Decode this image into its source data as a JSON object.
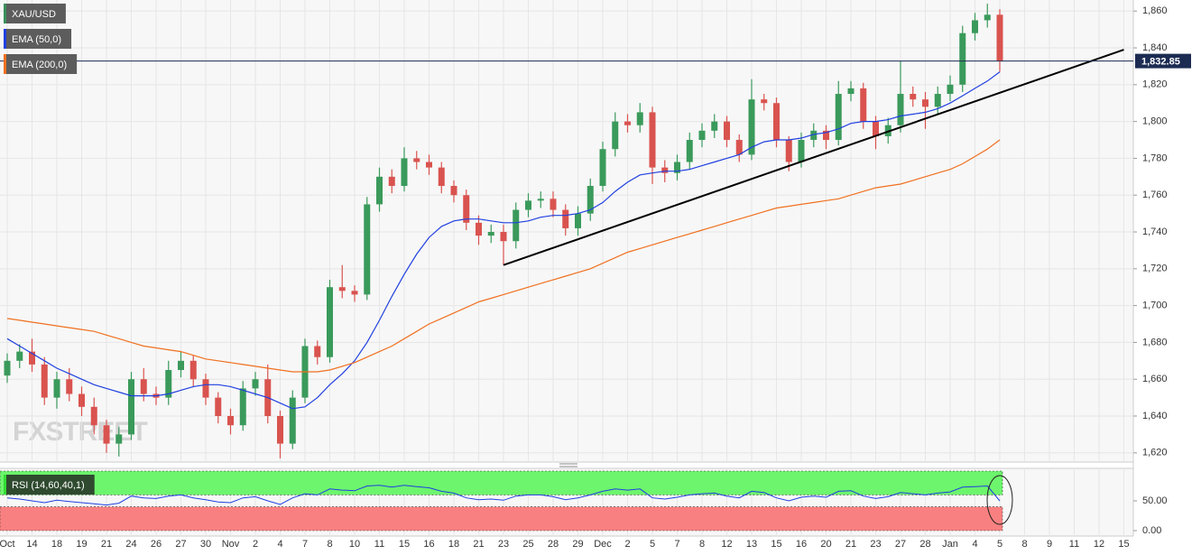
{
  "chart_data": {
    "type": "candlestick",
    "categories": [
      "Oct",
      null,
      "14",
      null,
      "18",
      null,
      "19",
      null,
      "21",
      null,
      "24",
      null,
      "26",
      null,
      "27",
      null,
      "30",
      null,
      "Nov",
      null,
      "2",
      null,
      "4",
      null,
      "7",
      null,
      "8",
      null,
      "10",
      null,
      "11",
      null,
      "15",
      null,
      "16",
      null,
      "18",
      null,
      "21",
      null,
      "23",
      null,
      "25",
      null,
      "28",
      null,
      "29",
      null,
      "Dec",
      null,
      "2",
      null,
      "5",
      null,
      "7",
      null,
      "8",
      null,
      "12",
      null,
      "13",
      null,
      "15",
      null,
      "16",
      null,
      "20",
      null,
      "21",
      null,
      "23",
      null,
      "27",
      null,
      "28",
      null,
      "Jan",
      null,
      "4",
      null,
      "5",
      null,
      "8",
      null,
      "9",
      null,
      "11",
      null,
      "12",
      null,
      "15"
    ],
    "series": [
      {
        "name": "XAU/USD",
        "color": "#3a8f5c",
        "up_color": "#3a9a5b",
        "down_color": "#d9534f",
        "open": [
          1662,
          1670,
          1675,
          1668,
          1650,
          1660,
          1652,
          1645,
          1635,
          1625,
          1630,
          1660,
          1652,
          1650,
          1665,
          1670,
          1660,
          1650,
          1640,
          1635,
          1655,
          1660,
          1640,
          1625,
          1650,
          1678,
          1672,
          1710,
          1708,
          1706,
          1755,
          1770,
          1765,
          1780,
          1778,
          1775,
          1765,
          1760,
          1745,
          1738,
          1740,
          1735,
          1752,
          1757,
          1758,
          1752,
          1742,
          1750,
          1765,
          1785,
          1800,
          1798,
          1805,
          1775,
          1772,
          1778,
          1790,
          1795,
          1800,
          1790,
          1782,
          1812,
          1810,
          1790,
          1778,
          1790,
          1795,
          1790,
          1815,
          1818,
          1800,
          1792,
          1798,
          1815,
          1812,
          1808,
          1815,
          1820,
          1848,
          1855,
          1858,
          null,
          null,
          null,
          null,
          null,
          null,
          null,
          null,
          null,
          null
        ],
        "high": [
          1674,
          1679,
          1682,
          1672,
          1664,
          1666,
          1656,
          1650,
          1638,
          1634,
          1664,
          1666,
          1656,
          1670,
          1675,
          1673,
          1663,
          1653,
          1644,
          1659,
          1664,
          1668,
          1643,
          1654,
          1682,
          1681,
          1714,
          1722,
          1711,
          1759,
          1775,
          1774,
          1786,
          1784,
          1782,
          1778,
          1768,
          1763,
          1749,
          1744,
          1744,
          1756,
          1761,
          1762,
          1762,
          1755,
          1754,
          1769,
          1789,
          1805,
          1804,
          1810,
          1808,
          1779,
          1782,
          1794,
          1799,
          1804,
          1803,
          1793,
          1823,
          1815,
          1813,
          1792,
          1794,
          1799,
          1798,
          1822,
          1822,
          1821,
          1803,
          1802,
          1833,
          1819,
          1816,
          1819,
          1825,
          1852,
          1859,
          1864,
          1861,
          null,
          null,
          null,
          null,
          null,
          null,
          null,
          null,
          null,
          null
        ],
        "low": [
          1658,
          1666,
          1664,
          1646,
          1644,
          1648,
          1640,
          1630,
          1620,
          1618,
          1627,
          1648,
          1646,
          1646,
          1661,
          1656,
          1646,
          1636,
          1630,
          1632,
          1651,
          1636,
          1617,
          1622,
          1647,
          1668,
          1669,
          1704,
          1702,
          1703,
          1751,
          1761,
          1762,
          1774,
          1771,
          1761,
          1756,
          1741,
          1733,
          1734,
          1722,
          1731,
          1748,
          1753,
          1748,
          1738,
          1738,
          1746,
          1762,
          1781,
          1794,
          1794,
          1766,
          1767,
          1768,
          1774,
          1786,
          1791,
          1786,
          1778,
          1779,
          1806,
          1786,
          1773,
          1775,
          1786,
          1785,
          1787,
          1811,
          1796,
          1785,
          1788,
          1794,
          1808,
          1796,
          1804,
          1811,
          1816,
          1844,
          1851,
          1827,
          null,
          null,
          null,
          null,
          null,
          null,
          null,
          null,
          null,
          null
        ],
        "close": [
          1670,
          1675,
          1668,
          1650,
          1660,
          1652,
          1645,
          1635,
          1625,
          1630,
          1660,
          1652,
          1650,
          1665,
          1670,
          1660,
          1650,
          1640,
          1635,
          1655,
          1660,
          1640,
          1625,
          1650,
          1678,
          1672,
          1710,
          1708,
          1706,
          1755,
          1770,
          1765,
          1780,
          1778,
          1775,
          1765,
          1760,
          1745,
          1738,
          1740,
          1735,
          1752,
          1757,
          1758,
          1752,
          1742,
          1750,
          1765,
          1785,
          1800,
          1798,
          1805,
          1775,
          1772,
          1778,
          1790,
          1795,
          1800,
          1790,
          1782,
          1812,
          1810,
          1790,
          1778,
          1790,
          1795,
          1790,
          1815,
          1818,
          1800,
          1792,
          1798,
          1815,
          1812,
          1808,
          1815,
          1820,
          1848,
          1855,
          1858,
          1832.85,
          null,
          null,
          null,
          null,
          null,
          null,
          null,
          null,
          null,
          null
        ]
      },
      {
        "name": "EMA (50,0)",
        "color": "#2040e0",
        "values": [
          1682,
          1678,
          1674,
          1670,
          1666,
          1663,
          1660,
          1657,
          1655,
          1653,
          1651,
          1651,
          1651,
          1652,
          1654,
          1656,
          1657,
          1657,
          1656,
          1654,
          1652,
          1650,
          1647,
          1644,
          1645,
          1650,
          1657,
          1663,
          1670,
          1680,
          1692,
          1705,
          1717,
          1728,
          1737,
          1743,
          1746,
          1747,
          1747,
          1746,
          1745,
          1745,
          1746,
          1748,
          1749,
          1749,
          1750,
          1752,
          1756,
          1762,
          1767,
          1771,
          1772,
          1773,
          1773,
          1774,
          1776,
          1778,
          1780,
          1782,
          1786,
          1789,
          1790,
          1790,
          1791,
          1793,
          1794,
          1796,
          1799,
          1800,
          1800,
          1801,
          1803,
          1804,
          1805,
          1807,
          1810,
          1814,
          1818,
          1822,
          1827,
          null,
          null,
          null,
          null,
          null,
          null,
          null,
          null,
          null,
          null
        ]
      },
      {
        "name": "EMA (200,0)",
        "color": "#f07020",
        "values": [
          1693,
          1692,
          1691,
          1690,
          1689,
          1688,
          1687,
          1686,
          1684,
          1682,
          1680,
          1678,
          1677,
          1676,
          1675,
          1673,
          1671,
          1670,
          1669,
          1668,
          1667,
          1666,
          1665,
          1664,
          1664,
          1664,
          1665,
          1667,
          1669,
          1672,
          1675,
          1678,
          1682,
          1686,
          1690,
          1693,
          1696,
          1699,
          1702,
          1704,
          1706,
          1708,
          1710,
          1712,
          1714,
          1716,
          1718,
          1720,
          1723,
          1726,
          1729,
          1731,
          1733,
          1735,
          1737,
          1739,
          1741,
          1743,
          1745,
          1747,
          1749,
          1751,
          1753,
          1754,
          1755,
          1756,
          1757,
          1758,
          1760,
          1762,
          1764,
          1765,
          1766,
          1768,
          1770,
          1772,
          1774,
          1777,
          1781,
          1785,
          1790,
          null,
          null,
          null,
          null,
          null,
          null,
          null,
          null,
          null,
          null
        ]
      }
    ],
    "ylim": [
      1615,
      1866
    ],
    "yticks": [
      {
        "value": 1620,
        "label": "1,620"
      },
      {
        "value": 1640,
        "label": "1,640"
      },
      {
        "value": 1660,
        "label": "1,660"
      },
      {
        "value": 1680,
        "label": "1,680"
      },
      {
        "value": 1700,
        "label": "1,700"
      },
      {
        "value": 1720,
        "label": "1,720"
      },
      {
        "value": 1740,
        "label": "1,740"
      },
      {
        "value": 1760,
        "label": "1,760"
      },
      {
        "value": 1780,
        "label": "1,780"
      },
      {
        "value": 1800,
        "label": "1,800"
      },
      {
        "value": 1820,
        "label": "1,820"
      },
      {
        "value": 1840,
        "label": "1,840"
      },
      {
        "value": 1860,
        "label": "1,860"
      }
    ],
    "grid": true,
    "price_line": {
      "value": 1832.85,
      "label": "1,832.85",
      "color": "#1c2b52"
    },
    "trendline": {
      "from": [
        40,
        1722
      ],
      "to": [
        90,
        1839
      ],
      "color": "#000000"
    },
    "watermark": "FXSTREET",
    "rsi": {
      "name": "RSI (14,60,40,1)",
      "color": "#2040e0",
      "values": [
        55,
        53,
        50,
        47,
        51,
        49,
        47,
        45,
        43,
        46,
        58,
        55,
        54,
        58,
        60,
        55,
        52,
        48,
        47,
        55,
        57,
        50,
        44,
        55,
        62,
        60,
        70,
        68,
        67,
        75,
        76,
        73,
        76,
        74,
        72,
        66,
        63,
        55,
        52,
        53,
        51,
        58,
        60,
        60,
        57,
        52,
        55,
        60,
        66,
        70,
        68,
        70,
        55,
        53,
        56,
        60,
        62,
        63,
        58,
        55,
        66,
        64,
        55,
        50,
        56,
        58,
        56,
        66,
        67,
        58,
        54,
        57,
        64,
        62,
        60,
        63,
        65,
        73,
        74,
        75,
        50,
        null,
        null,
        null,
        null,
        null,
        null,
        null,
        null,
        null,
        null
      ],
      "ylim": [
        0,
        100
      ],
      "yticks": [
        {
          "value": 0,
          "label": "0.00"
        },
        {
          "value": 50,
          "label": "50.00"
        }
      ],
      "bands": [
        {
          "from": 60,
          "to": 100,
          "color": "#6df56d"
        },
        {
          "from": 0,
          "to": 40,
          "color": "#f98080"
        }
      ]
    }
  }
}
